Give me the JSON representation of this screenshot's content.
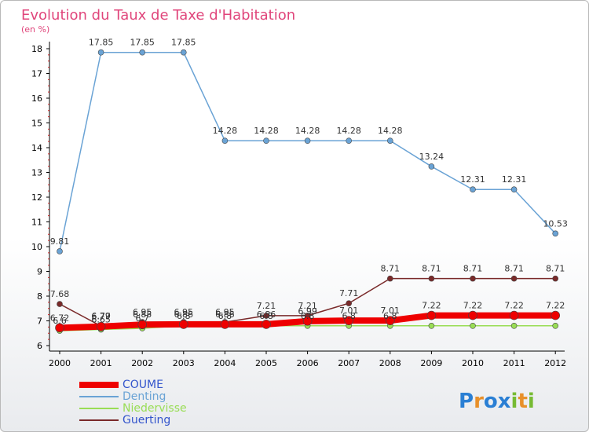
{
  "chart_data": {
    "type": "line",
    "title": "Evolution du Taux de Taxe d'Habitation",
    "subtitle": "(en %)",
    "categories": [
      "2000",
      "2001",
      "2002",
      "2003",
      "2004",
      "2005",
      "2006",
      "2007",
      "2008",
      "2009",
      "2010",
      "2011",
      "2012"
    ],
    "ylim": [
      6,
      18
    ],
    "yticks": [
      6,
      7,
      8,
      9,
      10,
      11,
      12,
      13,
      14,
      15,
      16,
      17,
      18
    ],
    "grid": false,
    "legend_position": "bottom-left",
    "series": [
      {
        "name": "COUME",
        "color": "#ee0000",
        "values": [
          6.72,
          6.77,
          6.85,
          6.86,
          6.86,
          6.86,
          6.99,
          7.01,
          7.01,
          7.22,
          7.22,
          7.22,
          7.22
        ],
        "labels": [
          "6.72",
          "6.77",
          "6.85",
          "6.86",
          "6.86",
          "6.86",
          "6.99",
          "7.01",
          "7.01",
          "7.22",
          "7.22",
          "7.22",
          "7.22"
        ]
      },
      {
        "name": "Denting",
        "color": "#6aa3d5",
        "values": [
          9.81,
          17.85,
          17.85,
          17.85,
          14.28,
          14.28,
          14.28,
          14.28,
          14.28,
          13.24,
          12.31,
          12.31,
          10.53
        ],
        "labels": [
          "9.81",
          "17.85",
          "17.85",
          "17.85",
          "14.28",
          "14.28",
          "14.28",
          "14.28",
          "14.28",
          "13.24",
          "12.31",
          "12.31",
          "10.53"
        ]
      },
      {
        "name": "Niedervisse",
        "color": "#99dd55",
        "values": [
          6.6,
          6.65,
          6.7,
          6.8,
          6.8,
          6.8,
          6.8,
          6.8,
          6.8,
          6.8,
          6.8,
          6.8,
          6.8
        ],
        "labels": [
          "6.6",
          "6.65",
          "6.7",
          "6.8",
          "6.8",
          "6.8",
          "6.8",
          "6.8",
          "6.8",
          "",
          "",
          "",
          ""
        ]
      },
      {
        "name": "Guerting",
        "color": "#7a2a2a",
        "values": [
          7.68,
          6.79,
          6.95,
          6.95,
          6.95,
          7.21,
          7.21,
          7.71,
          8.71,
          8.71,
          8.71,
          8.71,
          8.71
        ],
        "labels": [
          "7.68",
          "6.79",
          "6.95",
          "6.95",
          "6.95",
          "7.21",
          "7.21",
          "7.71",
          "8.71",
          "8.71",
          "8.71",
          "8.71",
          "8.71"
        ]
      }
    ]
  },
  "legend": [
    "COUME",
    "Denting",
    "Niedervisse",
    "Guerting"
  ],
  "logo": {
    "text": "Proxiti",
    "letters": [
      "P",
      "r",
      "o",
      "x",
      "i",
      "t",
      "i"
    ],
    "colors": [
      "#2a7fd4",
      "#e8902a",
      "#2a7fd4",
      "#2a7fd4",
      "#77bb33",
      "#e8902a",
      "#77bb33"
    ]
  }
}
